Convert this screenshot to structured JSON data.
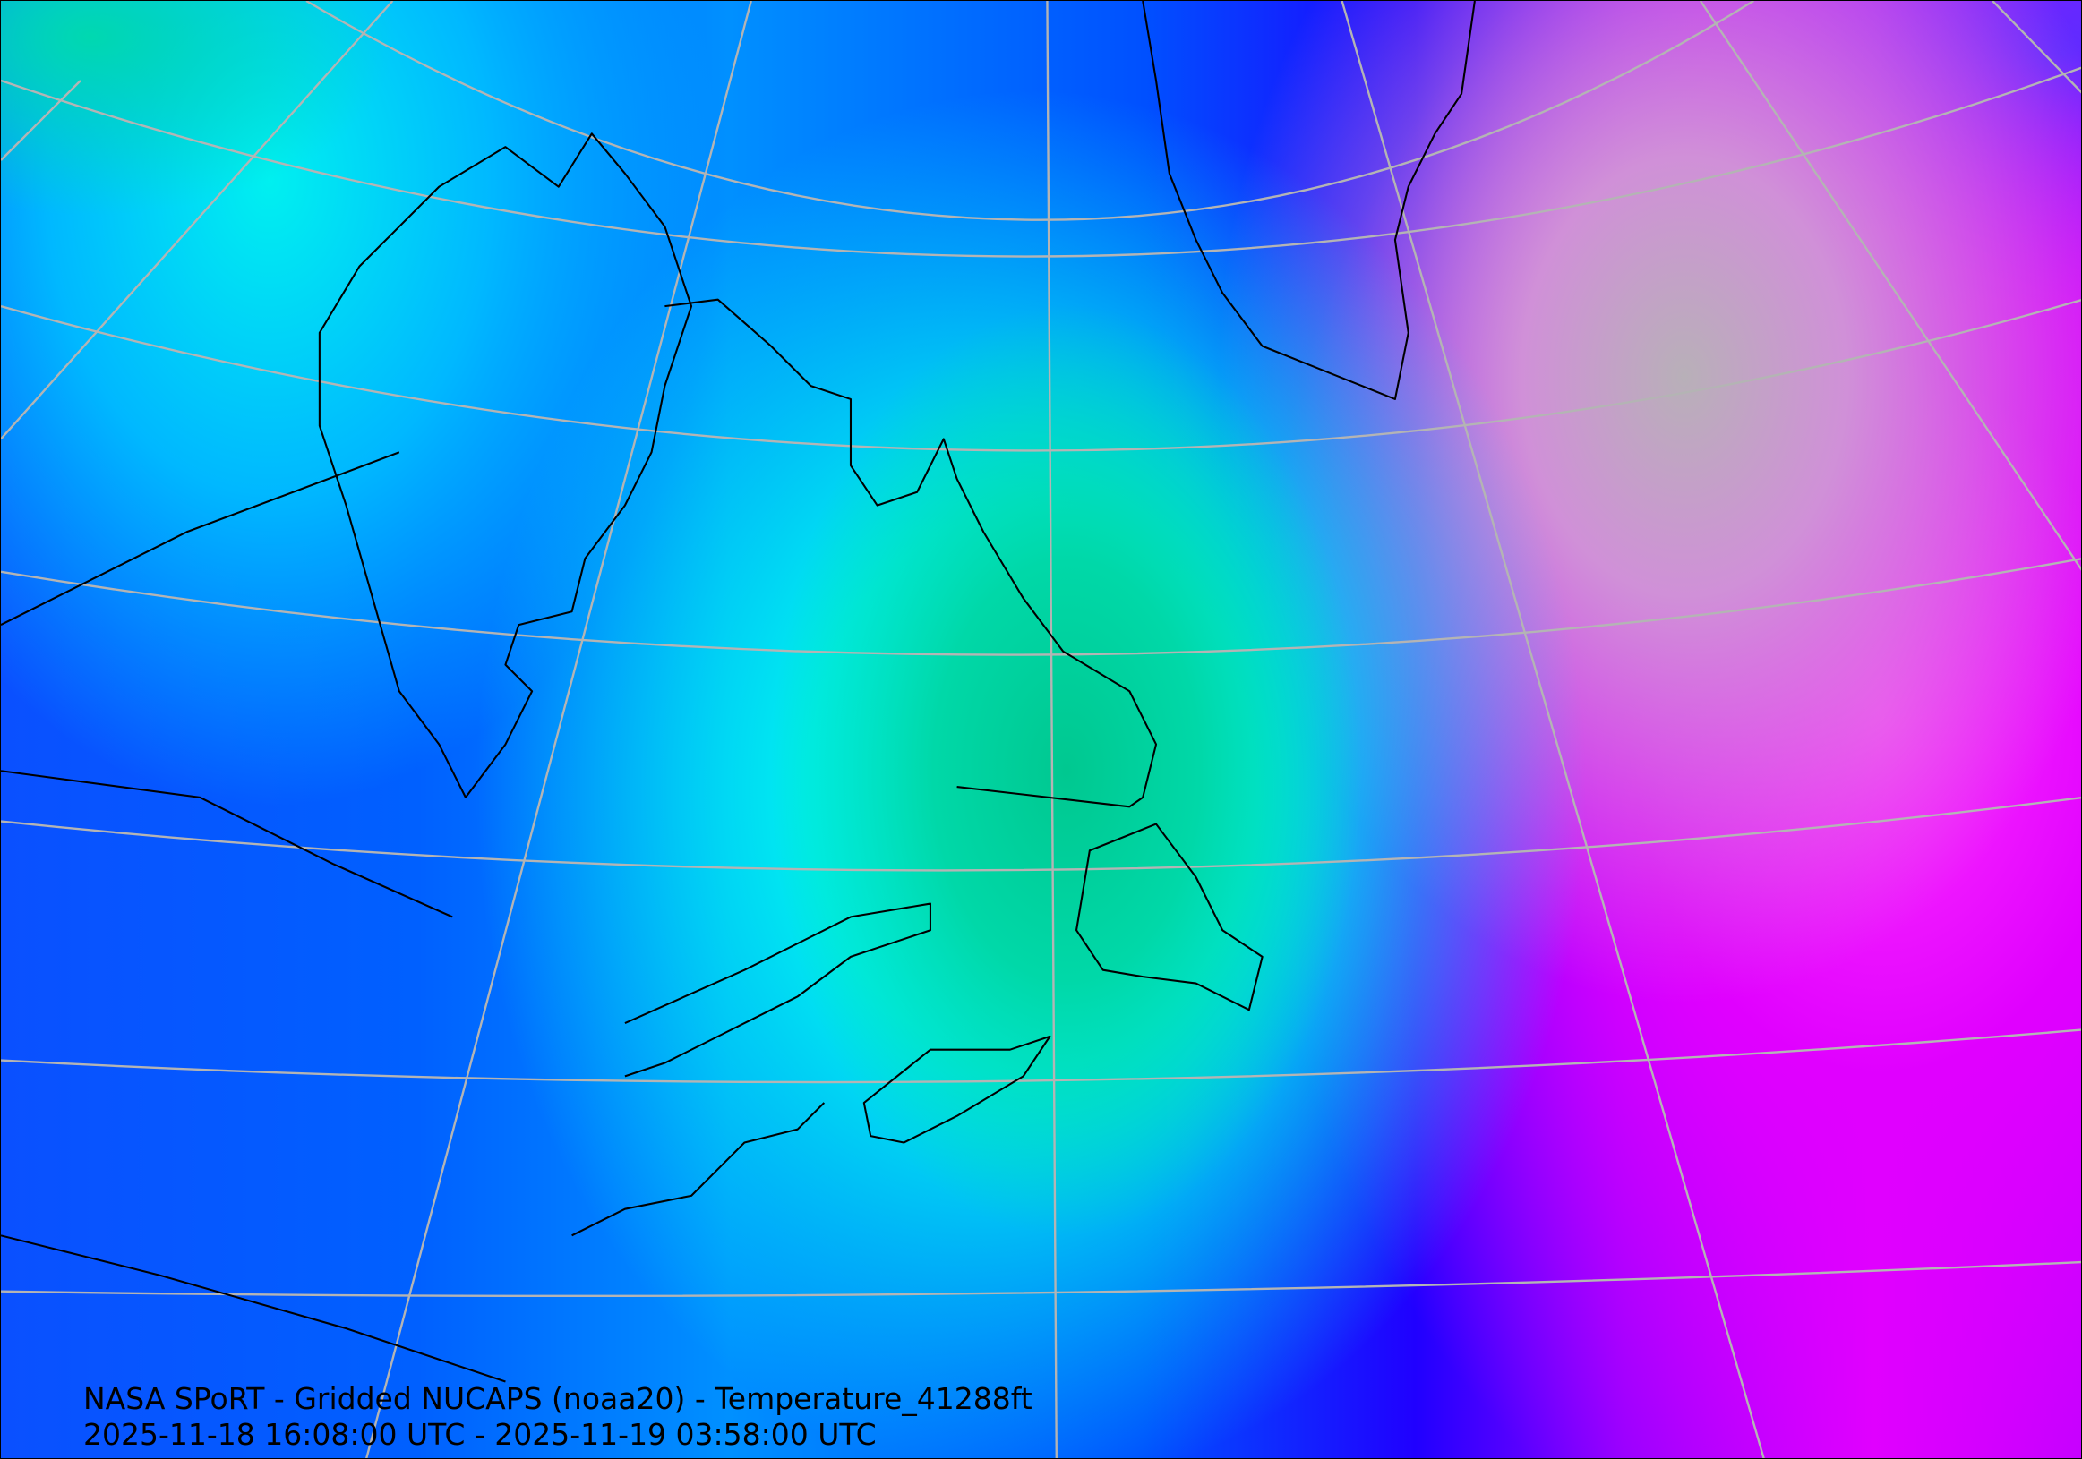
{
  "map": {
    "title": "NASA SPoRT - Gridded NUCAPS (noaa20) - Temperature_41288ft",
    "time_range": "2025-11-18 16:08:00 UTC - 2025-11-19 03:58:00 UTC",
    "projection": "conic",
    "colors": {
      "coldest": "#b0b0b0",
      "cold": "#ff00ff",
      "mid_cold": "#0000ff",
      "mid": "#0090ff",
      "warm": "#00ffff",
      "warmest": "#00c890",
      "graticule": "#b4b4b4",
      "coastline": "#000000"
    }
  }
}
